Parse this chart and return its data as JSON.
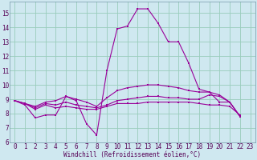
{
  "xlabel": "Windchill (Refroidissement éolien,°C)",
  "bg_color": "#cfe8f0",
  "line_color": "#990099",
  "grid_color": "#99ccbb",
  "xlim": [
    -0.5,
    23.5
  ],
  "ylim": [
    6,
    15.8
  ],
  "xticks": [
    0,
    1,
    2,
    3,
    4,
    5,
    6,
    7,
    8,
    9,
    10,
    11,
    12,
    13,
    14,
    15,
    16,
    17,
    18,
    19,
    20,
    21,
    22,
    23
  ],
  "yticks": [
    6,
    7,
    8,
    9,
    10,
    11,
    12,
    13,
    14,
    15
  ],
  "series": [
    [
      8.9,
      8.6,
      7.7,
      7.9,
      7.9,
      9.2,
      8.9,
      7.3,
      6.5,
      11.0,
      13.9,
      14.1,
      15.3,
      15.3,
      14.3,
      13.0,
      13.0,
      11.5,
      9.7,
      9.5,
      8.8,
      8.8,
      7.8
    ],
    [
      8.9,
      8.7,
      8.3,
      8.6,
      8.4,
      8.5,
      8.4,
      8.3,
      8.3,
      8.5,
      8.7,
      8.7,
      8.7,
      8.8,
      8.8,
      8.8,
      8.8,
      8.8,
      8.7,
      8.6,
      8.6,
      8.5,
      7.9
    ],
    [
      8.9,
      8.7,
      8.4,
      8.7,
      8.6,
      8.8,
      8.6,
      8.5,
      8.4,
      8.6,
      8.9,
      9.0,
      9.1,
      9.2,
      9.2,
      9.1,
      9.1,
      9.0,
      9.0,
      9.3,
      9.2,
      8.8,
      7.8
    ],
    [
      8.9,
      8.7,
      8.5,
      8.8,
      8.9,
      9.2,
      9.0,
      8.8,
      8.5,
      9.1,
      9.6,
      9.8,
      9.9,
      10.0,
      10.0,
      9.9,
      9.8,
      9.6,
      9.5,
      9.5,
      9.3,
      8.8,
      7.8
    ]
  ],
  "tick_fontsize": 5.5,
  "label_fontsize": 5.5,
  "tick_color": "#550055",
  "spine_color": "#7799aa"
}
